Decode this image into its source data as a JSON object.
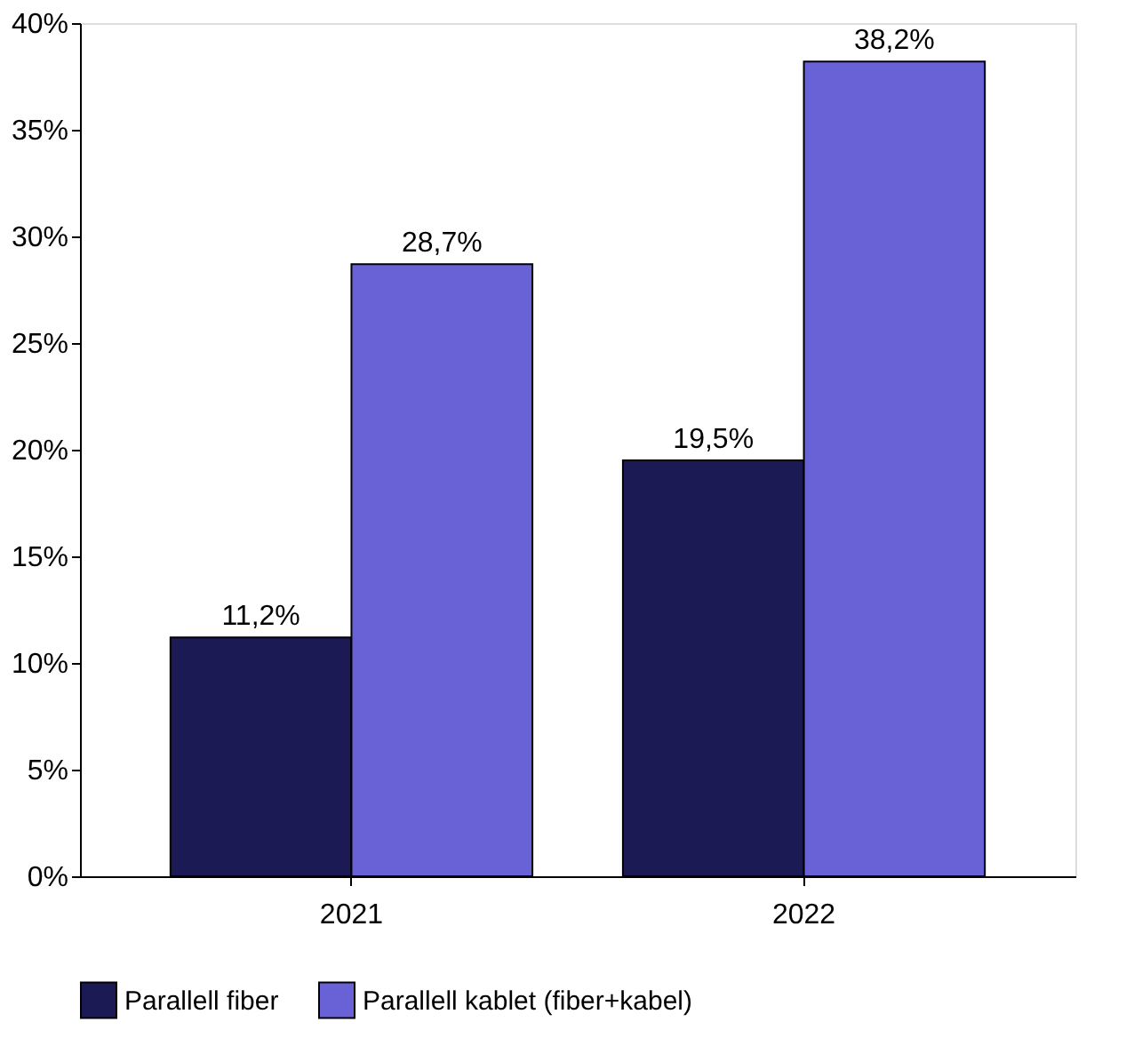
{
  "chart_data": {
    "type": "bar",
    "categories": [
      "2021",
      "2022"
    ],
    "series": [
      {
        "name": "Parallell fiber",
        "color": "#1c1a55",
        "values": [
          11.2,
          19.5
        ],
        "value_labels": [
          "11,2%",
          "19,5%"
        ]
      },
      {
        "name": "Parallell kablet (fiber+kabel)",
        "color": "#6961d6",
        "values": [
          28.7,
          38.2
        ],
        "value_labels": [
          "28,7%",
          "38,2%"
        ]
      }
    ],
    "ylim": [
      0,
      40
    ],
    "yticks": [
      {
        "value": 0,
        "label": "0%"
      },
      {
        "value": 5,
        "label": "5%"
      },
      {
        "value": 10,
        "label": "10%"
      },
      {
        "value": 15,
        "label": "15%"
      },
      {
        "value": 20,
        "label": "20%"
      },
      {
        "value": 25,
        "label": "25%"
      },
      {
        "value": 30,
        "label": "30%"
      },
      {
        "value": 35,
        "label": "35%"
      },
      {
        "value": 40,
        "label": "40%"
      }
    ],
    "grid": false,
    "legend": "bottom"
  }
}
